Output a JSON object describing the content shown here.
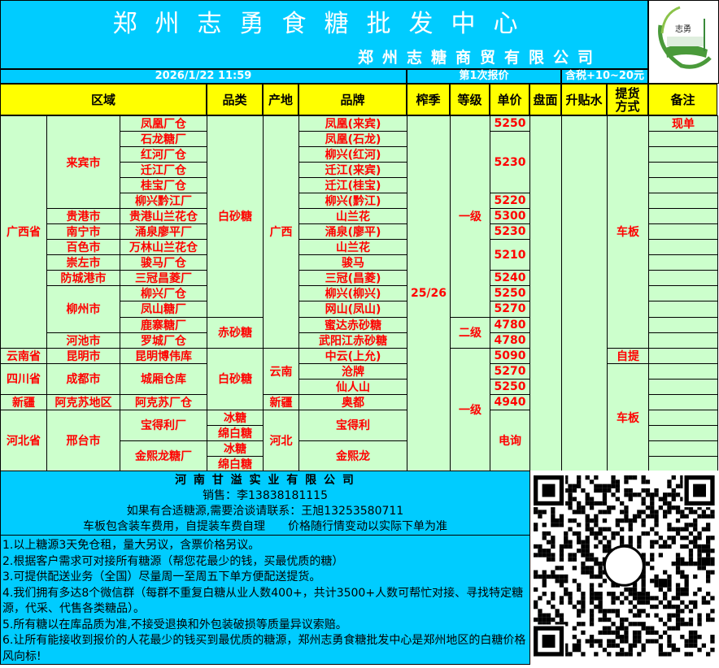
{
  "header": {
    "title": "郑州志勇食糖批发中心",
    "subtitle": "郑州志糖商贸有限公司",
    "logo_text": "志勇",
    "datetime": "2026/1/22 11:59",
    "quote_round": "第1次报价",
    "tax_note": "含税+10~20元"
  },
  "columns": {
    "region": "区域",
    "category": "品类",
    "origin": "产地",
    "brand": "品牌",
    "season": "榨季",
    "grade": "等级",
    "price": "单价",
    "futures": "盘面",
    "premium": "升贴水",
    "delivery": "提货方式",
    "remarks": "备注"
  },
  "table": {
    "province": [
      "广西省",
      "云南省",
      "四川省",
      "新疆",
      "河北省"
    ],
    "city": [
      "来宾市",
      "贵港市",
      "南宁市",
      "百色市",
      "崇左市",
      "防城港市",
      "柳州市",
      "河池市",
      "昆明市",
      "成都市",
      "阿克苏地区",
      "邢台市"
    ],
    "warehouse": [
      "凤凰厂仓",
      "石龙糖厂",
      "红河厂仓",
      "迁江厂仓",
      "桂宝厂仓",
      "柳兴黔江厂",
      "贵港山兰花仓",
      "涌泉廖平厂",
      "万林山兰花仓",
      "骏马厂仓",
      "三冠昌菱厂",
      "柳兴厂仓",
      "凤山糖厂",
      "鹿寨糖厂",
      "罗城厂仓",
      "昆明博伟库",
      "城厢仓库",
      "阿克苏厂仓",
      "宝得利厂",
      "金熙龙糖厂"
    ],
    "category": [
      "白砂糖",
      "赤砂糖",
      "白砂糖",
      "冰糖",
      "绵白糖",
      "冰糖",
      "绵白糖"
    ],
    "origin": [
      "广西",
      "云南",
      "新疆",
      "河北"
    ],
    "brand": [
      "凤凰(来宾)",
      "凤凰(石龙)",
      "柳兴(红河)",
      "迁江(来宾)",
      "迁江(桂宝)",
      "柳兴(黔江)",
      "山兰花",
      "涌泉(廖平)",
      "山兰花",
      "骏马",
      "三冠(昌菱)",
      "柳兴(柳兴)",
      "网山(凤山)",
      "蜜达赤砂糖",
      "武阳江赤砂糖",
      "中云(上允)",
      "沧牌",
      "仙人山",
      "奥都",
      "宝得利",
      "金熙龙"
    ],
    "season": [
      "25/26"
    ],
    "grade": [
      "一级",
      "二级",
      "一级"
    ],
    "price": [
      "5250",
      "5230",
      "5220",
      "5300",
      "5230",
      "5210",
      "5240",
      "5250",
      "5270",
      "4780",
      "4780",
      "5090",
      "5270",
      "5250",
      "4940",
      "电询"
    ],
    "futures": [
      ""
    ],
    "premium": [
      ""
    ],
    "delivery": [
      "车板",
      "自提",
      "车板"
    ],
    "remarks": [
      "现单",
      "",
      "",
      "",
      "",
      "",
      "",
      "",
      "",
      "",
      "",
      "",
      "",
      "",
      "",
      "",
      "",
      "",
      "",
      "",
      "",
      "",
      ""
    ]
  },
  "company": {
    "name": "河 南 甘 溢 实 业 有 限 公 司",
    "sales": "销售：李13838181115",
    "contact": "如果有合适糖源,需要洽谈请联系：王旭13253580711",
    "terms": "车板包含装车费用，自提装车费自理　　价格随行情变动以实际下单为准"
  },
  "notes": [
    "1.以上糖源3天免仓租，量大另议，含票价格另议。",
    "2.根据客户需求可对接所有糖源（帮您花最少的钱，买最优质的糖）",
    "3.可提供配送业务（全国）尽量周一至周五下单方便配送提货。",
    "4.我们拥有多达8个微信群（每群不重复白糖从业人数400+，共计3500+人数可帮忙对接、寻找特定糖源，代采、代售各类糖品）。",
    "5.所有糖以在库品质为准,不接受退换和外包装破损等质量异议索赔。",
    "6.让所有能接收到报价的人花最少的钱买到最优质的糖源，郑州志勇食糖批发中心是郑州地区的白糖价格风向标!"
  ],
  "colors": {
    "cyan": "#00CCFF",
    "yellow": "#FFFF00",
    "green": "#CCFFCC",
    "red": "#FF0000"
  }
}
